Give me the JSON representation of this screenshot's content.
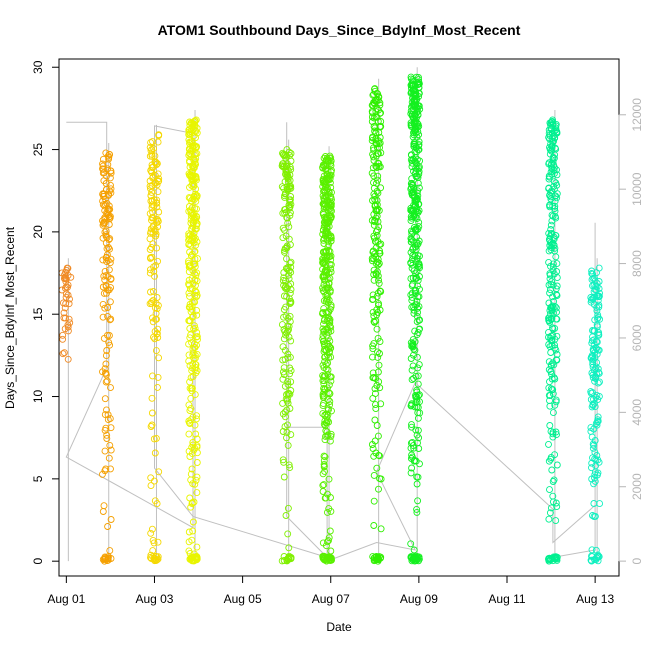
{
  "chart_data": {
    "type": "scatter",
    "title": "ATOM1 Southbound Days_Since_BdyInf_Most_Recent",
    "xlabel": "Date",
    "ylabel": "Days_Since_BdyInf_Most_Recent",
    "xlim": [
      "2024-07-31T20:00",
      "2024-08-13T13:00"
    ],
    "ylim": [
      -0.9,
      30.5
    ],
    "y2lim": [
      -400,
      13500
    ],
    "x_ticks": [
      "Aug 01",
      "Aug 03",
      "Aug 05",
      "Aug 07",
      "Aug 09",
      "Aug 11",
      "Aug 13"
    ],
    "y_ticks": [
      0,
      5,
      10,
      15,
      20,
      25,
      30
    ],
    "y2_ticks": [
      0,
      2000,
      4000,
      6000,
      8000,
      10000,
      12000
    ],
    "marker": "open-circle",
    "secondary_line_color": "#c0c0c0",
    "clusters": [
      {
        "date": "2024-08-01T00:00",
        "color": "#f08a24",
        "y_min": 10.6,
        "y_max": 17.8,
        "zeros": false,
        "count": 40
      },
      {
        "date": "2024-08-01T22:00",
        "color": "#f5a000",
        "y_min": 0.0,
        "y_max": 24.8,
        "zeros": true,
        "count": 160
      },
      {
        "date": "2024-08-03T00:00",
        "color": "#f5d800",
        "y_min": 0.0,
        "y_max": 25.9,
        "zeros": true,
        "count": 150
      },
      {
        "date": "2024-08-03T21:00",
        "color": "#e8f500",
        "y_min": 0.0,
        "y_max": 26.8,
        "zeros": true,
        "count": 330
      },
      {
        "date": "2024-08-06T00:00",
        "color": "#80f000",
        "y_min": 0.0,
        "y_max": 25.0,
        "zeros": true,
        "count": 200
      },
      {
        "date": "2024-08-06T22:00",
        "color": "#5af000",
        "y_min": 0.0,
        "y_max": 24.6,
        "zeros": true,
        "count": 400
      },
      {
        "date": "2024-08-08T01:00",
        "color": "#30f000",
        "y_min": 0.0,
        "y_max": 28.7,
        "zeros": true,
        "count": 220
      },
      {
        "date": "2024-08-08T22:00",
        "color": "#14f020",
        "y_min": 0.0,
        "y_max": 29.4,
        "zeros": true,
        "count": 400
      },
      {
        "date": "2024-08-12T01:00",
        "color": "#00f090",
        "y_min": 0.0,
        "y_max": 26.8,
        "zeros": true,
        "count": 260
      },
      {
        "date": "2024-08-13T00:00",
        "color": "#10f0c0",
        "y_min": 0.0,
        "y_max": 17.8,
        "zeros": true,
        "count": 160
      }
    ],
    "secondary_series": [
      [
        "2024-08-01T00:00",
        11800
      ],
      [
        "2024-08-01T22:00",
        11800
      ],
      [
        "2024-08-01T22:00",
        5200
      ],
      [
        "2024-08-01T00:00",
        2800
      ],
      [
        "2024-08-03T21:00",
        900
      ],
      [
        "2024-08-03T21:00",
        11500
      ],
      [
        "2024-08-03T00:00",
        11700
      ],
      [
        "2024-08-03T00:00",
        2500
      ],
      [
        "2024-08-03T21:00",
        1200
      ],
      [
        "2024-08-06T22:00",
        100
      ],
      [
        "2024-08-06T00:00",
        1200
      ],
      [
        "2024-08-06T00:00",
        11800
      ],
      [
        "2024-08-06T00:00",
        3600
      ],
      [
        "2024-08-06T22:00",
        3600
      ],
      [
        "2024-08-06T22:00",
        0
      ],
      [
        "2024-08-08T01:00",
        500
      ],
      [
        "2024-08-08T22:00",
        300
      ],
      [
        "2024-08-08T01:00",
        2400
      ],
      [
        "2024-08-08T22:00",
        4800
      ],
      [
        "2024-08-12T01:00",
        1400
      ],
      [
        "2024-08-12T01:00",
        500
      ],
      [
        "2024-08-13T00:00",
        1500
      ],
      [
        "2024-08-13T00:00",
        9100
      ],
      [
        "2024-08-13T00:00",
        300
      ],
      [
        "2024-08-12T01:00",
        100
      ]
    ]
  }
}
